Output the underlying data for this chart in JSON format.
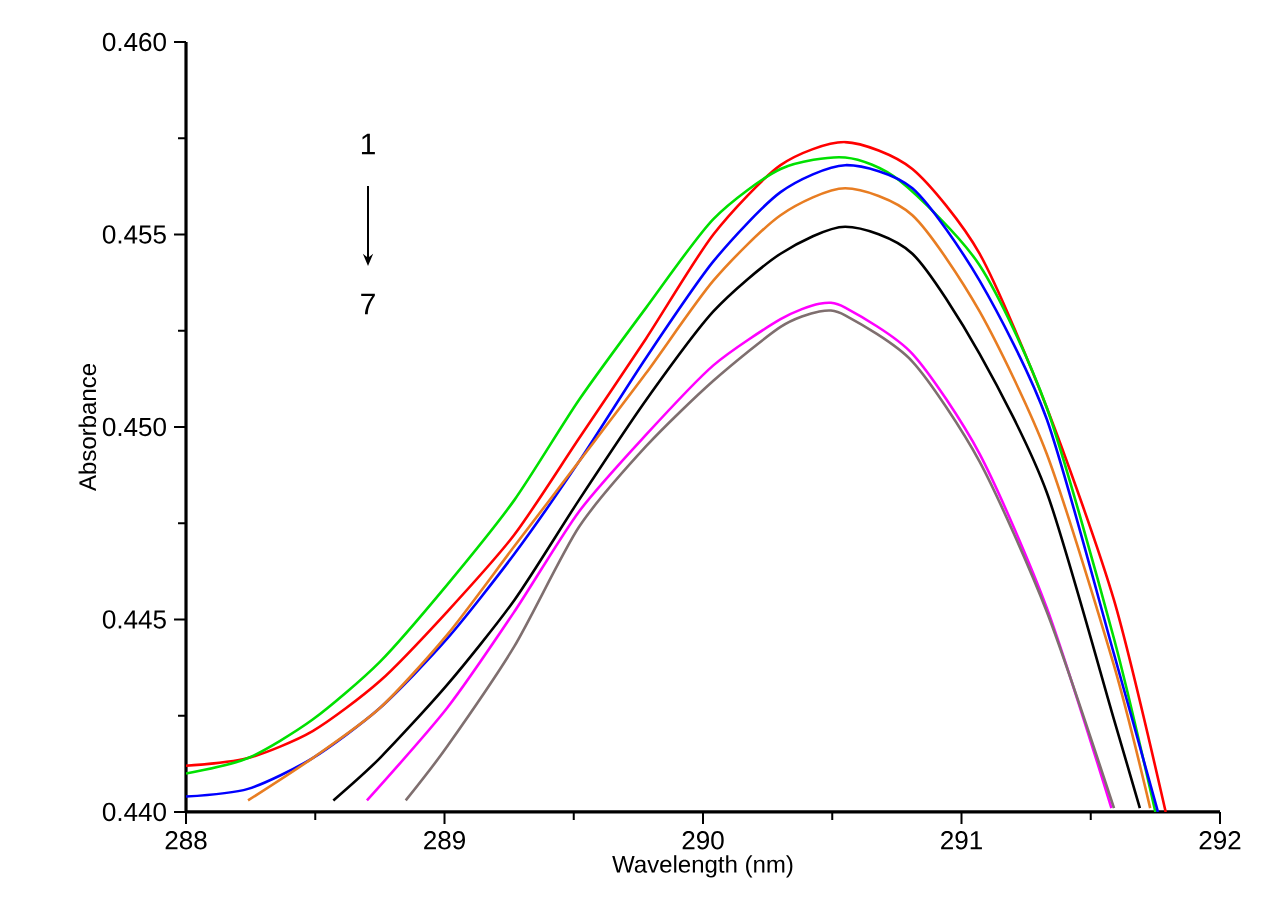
{
  "chart_data": {
    "type": "line",
    "xlabel": "Wavelength (nm)",
    "ylabel": "Absorbance",
    "annotations": [
      "1",
      "7"
    ],
    "xlim": [
      288,
      292
    ],
    "xticks": [
      288,
      289,
      290,
      291,
      292
    ],
    "ylim": [
      0.44,
      0.46
    ],
    "yticks": [
      {
        "value": 0.44,
        "label": "0.440"
      },
      {
        "value": 0.445,
        "label": "0.445"
      },
      {
        "value": 0.45,
        "label": "0.450"
      },
      {
        "value": 0.455,
        "label": "0.455"
      },
      {
        "value": 0.46,
        "label": "0.460"
      }
    ],
    "marker": "none",
    "line_style": "solid",
    "series": [
      {
        "color": "#ff0000",
        "x": [
          288.0,
          288.24,
          288.49,
          288.75,
          289.01,
          289.27,
          289.52,
          289.78,
          290.04,
          290.3,
          290.55,
          290.81,
          291.07,
          291.33,
          291.59,
          291.79
        ],
        "values": [
          0.4412,
          0.4414,
          0.4421,
          0.4434,
          0.4452,
          0.4472,
          0.4497,
          0.4523,
          0.455,
          0.4568,
          0.4574,
          0.4567,
          0.4545,
          0.4505,
          0.4455,
          0.44
        ]
      },
      {
        "color": "#00e000",
        "x": [
          288.0,
          288.24,
          288.49,
          288.75,
          289.01,
          289.27,
          289.52,
          289.78,
          290.04,
          290.3,
          290.55,
          290.76,
          291.07,
          291.33,
          291.59,
          291.75
        ],
        "values": [
          0.441,
          0.4414,
          0.4424,
          0.4439,
          0.4459,
          0.4481,
          0.4507,
          0.4531,
          0.4554,
          0.4567,
          0.457,
          0.4564,
          0.4542,
          0.4505,
          0.4445,
          0.44
        ]
      },
      {
        "color": "#0000ff",
        "x": [
          288.0,
          288.24,
          288.49,
          288.75,
          289.01,
          289.27,
          289.52,
          289.78,
          290.04,
          290.3,
          290.55,
          290.81,
          291.07,
          291.33,
          291.59,
          291.76
        ],
        "values": [
          0.4404,
          0.4406,
          0.4414,
          0.4427,
          0.4445,
          0.4467,
          0.4491,
          0.4518,
          0.4543,
          0.4561,
          0.4568,
          0.4562,
          0.4538,
          0.4502,
          0.4441,
          0.44
        ]
      },
      {
        "color": "#e87d22",
        "x": [
          288.24,
          288.49,
          288.75,
          289.01,
          289.27,
          289.52,
          289.78,
          290.04,
          290.3,
          290.55,
          290.81,
          291.07,
          291.33,
          291.59,
          291.73
        ],
        "values": [
          0.4403,
          0.4414,
          0.4427,
          0.4446,
          0.4469,
          0.4491,
          0.4514,
          0.4538,
          0.4555,
          0.4562,
          0.4555,
          0.453,
          0.4493,
          0.4438,
          0.4401
        ]
      },
      {
        "color": "#000000",
        "x": [
          288.57,
          288.75,
          289.01,
          289.27,
          289.52,
          289.78,
          290.04,
          290.3,
          290.55,
          290.81,
          291.07,
          291.33,
          291.59,
          291.69
        ],
        "values": [
          0.4403,
          0.4414,
          0.4433,
          0.4455,
          0.4481,
          0.4507,
          0.453,
          0.4545,
          0.4552,
          0.4545,
          0.4519,
          0.4483,
          0.4424,
          0.4401
        ]
      },
      {
        "color": "#ff00ff",
        "x": [
          288.7,
          289.01,
          289.27,
          289.52,
          289.78,
          290.04,
          290.3,
          290.45,
          290.55,
          290.81,
          291.07,
          291.33,
          291.58
        ],
        "values": [
          0.4403,
          0.4427,
          0.4452,
          0.4478,
          0.4498,
          0.4516,
          0.4528,
          0.4532,
          0.4531,
          0.4519,
          0.4493,
          0.4453,
          0.4401
        ]
      },
      {
        "color": "#7f6f6f",
        "x": [
          288.85,
          289.01,
          289.27,
          289.52,
          289.78,
          290.04,
          290.3,
          290.45,
          290.55,
          290.81,
          291.07,
          291.33,
          291.59
        ],
        "values": [
          0.4403,
          0.4417,
          0.4443,
          0.4474,
          0.4495,
          0.4512,
          0.4526,
          0.453,
          0.4529,
          0.4517,
          0.4491,
          0.4452,
          0.4401
        ]
      }
    ]
  }
}
